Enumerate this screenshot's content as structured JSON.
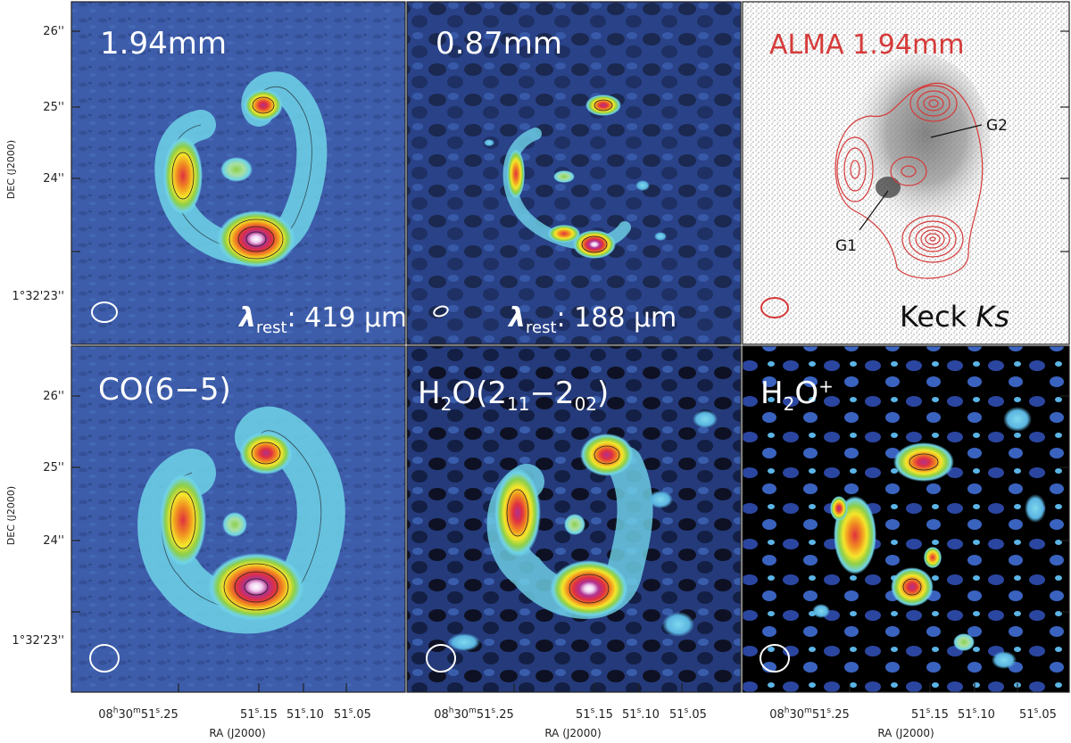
{
  "figure": {
    "panels": [
      {
        "id": "p1",
        "title": "1.94mm",
        "subtitle_prefix": "λ",
        "subtitle_sub": "rest",
        "subtitle_value": ": 419 μm",
        "style": "dust"
      },
      {
        "id": "p2",
        "title": "0.87mm",
        "subtitle_prefix": "λ",
        "subtitle_sub": "rest",
        "subtitle_value": ": 188 μm",
        "style": "dust-noisy"
      },
      {
        "id": "p3",
        "title": "ALMA 1.94mm",
        "keck": "Keck ",
        "keck_italic": "Ks",
        "label_g1": "G1",
        "label_g2": "G2",
        "style": "optical"
      },
      {
        "id": "p4",
        "title": "CO(6−5)",
        "style": "line"
      },
      {
        "id": "p5",
        "title_main": "H",
        "title_sub1": "2",
        "title_mid": "O(2",
        "title_sub2": "11",
        "title_dash": "−2",
        "title_sub3": "02",
        "title_end": ")",
        "style": "water"
      },
      {
        "id": "p6",
        "title_main": "H",
        "title_sub1": "2",
        "title_mid": "O",
        "title_sup": "+",
        "style": "water-ion"
      }
    ],
    "y_axis": {
      "label": "DEC (J2000)",
      "ticks": [
        "26''",
        "25''",
        "24''",
        "1°32'23''"
      ]
    },
    "x_axis": {
      "label": "RA (J2000)",
      "ticks": [
        {
          "h": "08",
          "hs": "h",
          "m": "30",
          "ms": "m",
          "s": "51",
          "ss": "s",
          "f": ".25"
        },
        {
          "h": "",
          "hs": "",
          "m": "",
          "ms": "",
          "s": "51",
          "ss": "s",
          "f": ".15"
        },
        {
          "h": "",
          "hs": "",
          "m": "",
          "ms": "",
          "s": "51",
          "ss": "s",
          "f": ".10"
        },
        {
          "h": "",
          "hs": "",
          "m": "",
          "ms": "",
          "s": "51",
          "ss": "s",
          "f": ".05"
        }
      ]
    },
    "colors": {
      "background_blue": "#3b5aa8",
      "contour_red": "#d63a3a",
      "white": "#ffffff"
    }
  }
}
